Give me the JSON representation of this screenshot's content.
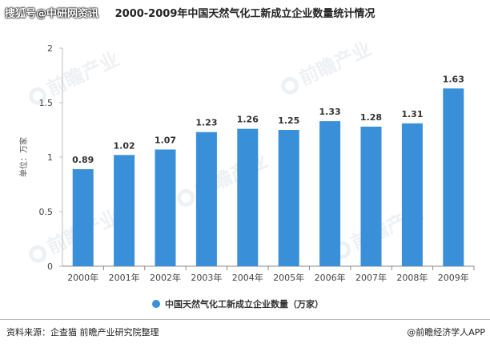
{
  "header": {
    "overlay_text": "搜狐号@中研网资讯",
    "title": "2000-2009年中国天然气化工新成立企业数量统计情况"
  },
  "chart_data": {
    "type": "bar",
    "title": "2000-2009年中国天然气化工新成立企业数量统计情况",
    "categories": [
      "2000年",
      "2001年",
      "2002年",
      "2003年",
      "2004年",
      "2005年",
      "2006年",
      "2007年",
      "2008年",
      "2009年"
    ],
    "series": [
      {
        "name": "中国天然气化工新成立企业数量（万家）",
        "values": [
          0.89,
          1.02,
          1.07,
          1.23,
          1.26,
          1.25,
          1.33,
          1.28,
          1.31,
          1.63
        ]
      }
    ],
    "ylabel": "单位：万家",
    "ylim": [
      0,
      2
    ],
    "yticks": [
      "0",
      "0.5",
      "1",
      "1.5",
      "2"
    ],
    "grid": false,
    "legend_position": "bottom",
    "bar_color": "#3a8fd9"
  },
  "legend": {
    "label": "中国天然气化工新成立企业数量（万家）"
  },
  "footer": {
    "source": "资料来源：企查猫 前瞻产业研究院整理",
    "credit": "@前瞻经济学人APP"
  },
  "watermark": {
    "text": "前瞻产业"
  }
}
